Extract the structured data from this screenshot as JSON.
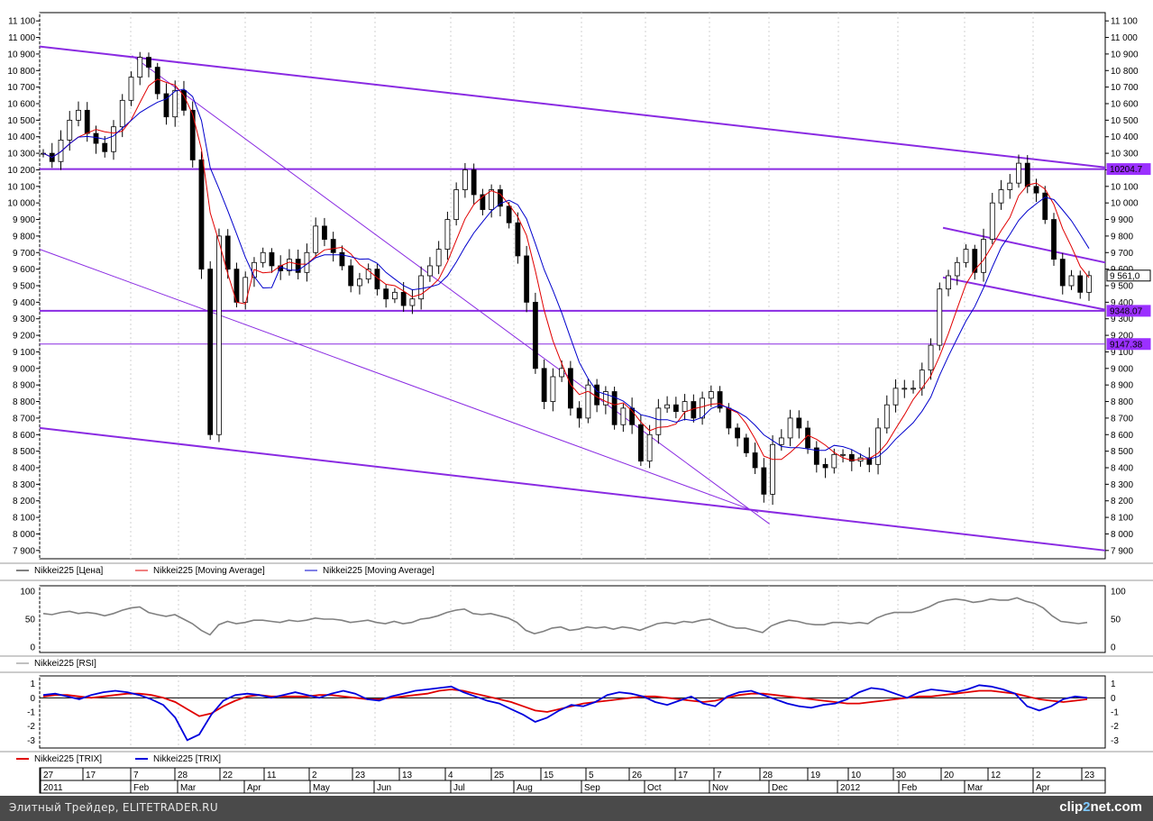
{
  "chart_data": [
    {
      "type": "candlestick",
      "title": "",
      "ylim": [
        7850,
        11150
      ],
      "yticks": [
        "11 100",
        "11 000",
        "10 900",
        "10 800",
        "10 700",
        "10 600",
        "10 500",
        "10 400",
        "10 300",
        "10 200",
        "10 100",
        "10 000",
        "9 900",
        "9 800",
        "9 700",
        "9 600",
        "9 500",
        "9 400",
        "9 300",
        "9 200",
        "9 100",
        "9 000",
        "8 900",
        "8 800",
        "8 700",
        "8 600",
        "8 500",
        "8 400",
        "8 300",
        "8 200",
        "8 100",
        "8 000",
        "7 900"
      ],
      "price_labels": [
        {
          "value": 10204.7,
          "text": "10204.7",
          "color": "#9b30ff"
        },
        {
          "value": 9561.0,
          "text": "9 561,0",
          "color": "#ffffff"
        },
        {
          "value": 9348.07,
          "text": "9348.07",
          "color": "#9b30ff"
        },
        {
          "value": 9147.38,
          "text": "9147.38",
          "color": "#9b30ff"
        }
      ],
      "legend": [
        "Nikkei225 [Цена]",
        "Nikkei225 [Moving Average]",
        "Nikkei225 [Moving Average]"
      ],
      "series": [
        {
          "name": "Nikkei225 [Цена]",
          "points": [
            10300,
            10250,
            10380,
            10500,
            10560,
            10420,
            10360,
            10310,
            10460,
            10620,
            10760,
            10880,
            10820,
            10660,
            10520,
            10680,
            10560,
            10260,
            9600,
            8600,
            9800,
            9600,
            9400,
            9550,
            9640,
            9700,
            9620,
            9590,
            9660,
            9580,
            9700,
            9860,
            9780,
            9700,
            9620,
            9500,
            9540,
            9600,
            9480,
            9420,
            9460,
            9380,
            9420,
            9560,
            9620,
            9720,
            9900,
            10080,
            10200,
            10050,
            9960,
            10080,
            9980,
            9880,
            9680,
            9400,
            9000,
            8800,
            8950,
            9000,
            8760,
            8700,
            8900,
            8780,
            8860,
            8660,
            8760,
            8660,
            8440,
            8600,
            8760,
            8780,
            8740,
            8800,
            8700,
            8820,
            8860,
            8760,
            8640,
            8580,
            8490,
            8400,
            8240,
            8540,
            8580,
            8700,
            8640,
            8520,
            8420,
            8400,
            8480,
            8480,
            8440,
            8460,
            8420,
            8640,
            8780,
            8880,
            8880,
            8880,
            8990,
            9140,
            9480,
            9560,
            9640,
            9720,
            9580,
            9780,
            10000,
            10080,
            10120,
            10240,
            10100,
            10060,
            9900,
            9660,
            9500,
            9560,
            9460,
            9561
          ]
        },
        {
          "name": "Nikkei225 [Moving Average]",
          "color": "#e00000",
          "smooth": 5
        },
        {
          "name": "Nikkei225 [Moving Average]",
          "color": "#0000cc",
          "smooth": 8
        }
      ],
      "trendlines": [
        {
          "from": [
            "2011-01-10",
            10945
          ],
          "to": [
            "2012-04-27",
            10215
          ],
          "color": "#8a2be2",
          "width": 2
        },
        {
          "from": [
            "2011-02-20",
            10890
          ],
          "to": [
            "2011-11-30",
            8060
          ],
          "color": "#8a2be2",
          "width": 1
        },
        {
          "from": [
            "2011-01-10",
            9720
          ],
          "to": [
            "2011-11-25",
            8130
          ],
          "color": "#8a2be2",
          "width": 1
        },
        {
          "from": [
            "2011-01-10",
            8640
          ],
          "to": [
            "2012-04-27",
            7900
          ],
          "color": "#8a2be2",
          "width": 2
        },
        {
          "from": [
            "2012-02-15",
            9850
          ],
          "to": [
            "2012-04-27",
            9640
          ],
          "color": "#8a2be2",
          "width": 2
        },
        {
          "from": [
            "2012-02-15",
            9550
          ],
          "to": [
            "2012-04-27",
            9355
          ],
          "color": "#8a2be2",
          "width": 2
        }
      ],
      "hlines": [
        10204.7,
        9348.07,
        9147.38
      ]
    },
    {
      "type": "line",
      "name": "Nikkei225 [RSI]",
      "legend": [
        "Nikkei225 [RSI]"
      ],
      "ylim": [
        0,
        100
      ],
      "yticks": [
        "100",
        "50",
        "0"
      ],
      "color": "#808080",
      "values": [
        60,
        58,
        62,
        64,
        60,
        62,
        60,
        56,
        60,
        66,
        70,
        72,
        62,
        58,
        55,
        58,
        50,
        42,
        30,
        22,
        40,
        46,
        42,
        44,
        48,
        48,
        46,
        44,
        48,
        46,
        48,
        52,
        50,
        50,
        48,
        44,
        46,
        48,
        44,
        42,
        46,
        42,
        44,
        50,
        52,
        56,
        62,
        66,
        68,
        60,
        58,
        60,
        56,
        52,
        44,
        30,
        24,
        28,
        34,
        36,
        30,
        32,
        36,
        34,
        36,
        32,
        36,
        34,
        30,
        36,
        42,
        44,
        42,
        46,
        44,
        48,
        50,
        44,
        38,
        34,
        34,
        30,
        26,
        38,
        44,
        48,
        46,
        42,
        40,
        40,
        44,
        44,
        42,
        44,
        42,
        52,
        58,
        62,
        62,
        62,
        66,
        72,
        80,
        84,
        86,
        84,
        80,
        82,
        86,
        84,
        84,
        88,
        82,
        78,
        70,
        56,
        46,
        44,
        42,
        44
      ]
    },
    {
      "type": "line",
      "name": "Nikkei225 [TRIX]",
      "legend": [
        "Nikkei225 [TRIX]",
        "Nikkei225 [TRIX]"
      ],
      "ylim": [
        -3.3,
        1.3
      ],
      "yticks": [
        "1",
        "0",
        "-1",
        "-2",
        "-3"
      ],
      "series": [
        {
          "name": "Nikkei225 [TRIX]",
          "color": "#e00000",
          "values": [
            0.1,
            0.2,
            0.2,
            0.1,
            0.0,
            0.1,
            0.2,
            0.3,
            0.3,
            0.2,
            0.0,
            -0.3,
            -0.8,
            -1.3,
            -1.1,
            -0.6,
            -0.2,
            0.1,
            0.2,
            0.1,
            0.1,
            0.1,
            0.1,
            0.2,
            0.2,
            0.1,
            0.0,
            -0.1,
            -0.1,
            0.0,
            0.1,
            0.2,
            0.3,
            0.5,
            0.6,
            0.5,
            0.3,
            0.1,
            -0.1,
            -0.3,
            -0.6,
            -0.9,
            -1.0,
            -0.8,
            -0.6,
            -0.4,
            -0.3,
            -0.2,
            -0.1,
            0.0,
            0.1,
            0.1,
            0.0,
            -0.1,
            -0.2,
            -0.3,
            -0.2,
            0.0,
            0.2,
            0.3,
            0.3,
            0.2,
            0.1,
            0.0,
            -0.1,
            -0.2,
            -0.3,
            -0.4,
            -0.4,
            -0.3,
            -0.2,
            -0.1,
            0.0,
            0.1,
            0.1,
            0.2,
            0.3,
            0.4,
            0.5,
            0.5,
            0.4,
            0.3,
            0.1,
            -0.1,
            -0.2,
            -0.3,
            -0.2,
            -0.1
          ]
        },
        {
          "name": "Nikkei225 [TRIX]",
          "color": "#0000dd",
          "values": [
            0.2,
            0.3,
            0.1,
            -0.1,
            0.2,
            0.4,
            0.5,
            0.4,
            0.2,
            -0.1,
            -0.5,
            -1.4,
            -3.0,
            -2.6,
            -1.2,
            -0.2,
            0.2,
            0.3,
            0.2,
            0.0,
            0.2,
            0.4,
            0.2,
            0.0,
            0.3,
            0.5,
            0.3,
            -0.1,
            -0.2,
            0.1,
            0.3,
            0.5,
            0.6,
            0.7,
            0.8,
            0.4,
            0.1,
            -0.2,
            -0.4,
            -0.8,
            -1.2,
            -1.7,
            -1.4,
            -0.9,
            -0.5,
            -0.6,
            -0.3,
            0.2,
            0.4,
            0.3,
            0.1,
            -0.3,
            -0.5,
            -0.2,
            0.1,
            -0.4,
            -0.6,
            0.1,
            0.4,
            0.5,
            0.2,
            -0.1,
            -0.4,
            -0.6,
            -0.7,
            -0.5,
            -0.4,
            -0.1,
            0.4,
            0.7,
            0.6,
            0.3,
            0.0,
            0.4,
            0.6,
            0.5,
            0.4,
            0.6,
            0.9,
            0.8,
            0.6,
            0.3,
            -0.6,
            -0.9,
            -0.6,
            -0.1,
            0.1,
            0.0
          ]
        }
      ]
    }
  ],
  "time_axis": {
    "days": [
      "27",
      "17",
      "7",
      "28",
      "22",
      "11",
      "2",
      "23",
      "13",
      "4",
      "25",
      "15",
      "5",
      "26",
      "17",
      "7",
      "28",
      "19",
      "10",
      "30",
      "20",
      "12",
      "2",
      "23"
    ],
    "months": [
      "2011",
      "Feb",
      "Mar",
      "Apr",
      "May",
      "Jun",
      "Jul",
      "Aug",
      "Sep",
      "Oct",
      "Nov",
      "Dec",
      "2012",
      "Feb",
      "Mar",
      "Apr"
    ]
  },
  "footer": {
    "title": "Элитный Трейдер, ELITETRADER.RU",
    "brand_a": "clip",
    "brand_b": "2",
    "brand_c": "net",
    "brand_d": ".com"
  }
}
